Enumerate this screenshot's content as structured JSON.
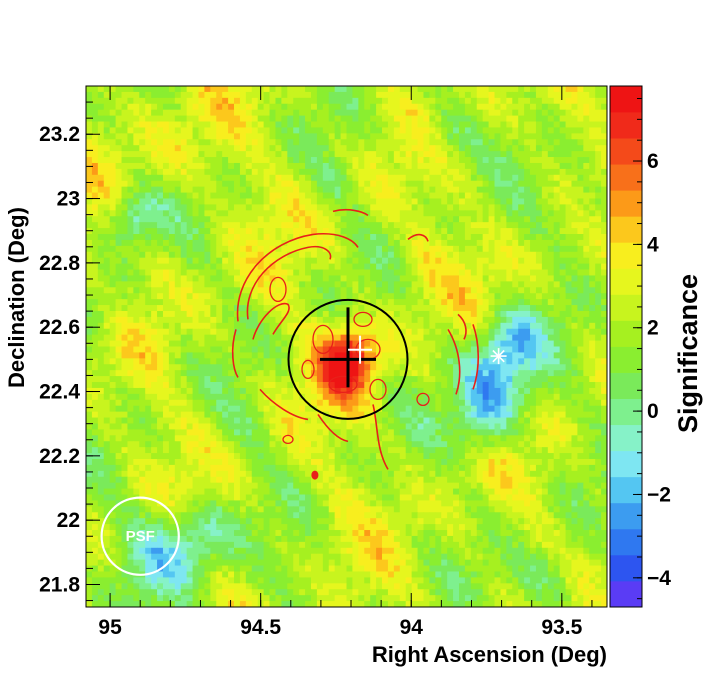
{
  "chart_data": {
    "type": "heatmap",
    "title": "",
    "xlabel": "Right Ascension (Deg)",
    "ylabel": "Declination (Deg)",
    "zlabel": "Significance",
    "xlim": [
      95.08,
      93.35
    ],
    "ylim": [
      21.73,
      23.35
    ],
    "x_reversed": true,
    "zlim": [
      -4.7,
      7.8
    ],
    "x_ticks": [
      95,
      94.5,
      94,
      93.5
    ],
    "x_tick_labels": [
      "95",
      "94.5",
      "94",
      "93.5"
    ],
    "y_ticks": [
      21.8,
      22,
      22.2,
      22.4,
      22.6,
      22.8,
      23,
      23.2
    ],
    "y_tick_labels": [
      "21.8",
      "22",
      "22.2",
      "22.4",
      "22.6",
      "22.8",
      "23",
      "23.2"
    ],
    "z_ticks": [
      -4,
      -2,
      0,
      2,
      4,
      6
    ],
    "z_tick_labels": [
      "−4",
      "−2",
      "0",
      "2",
      "4",
      "6"
    ],
    "colorbar_colors": [
      "#5a3cf5",
      "#2d55f0",
      "#2f78f0",
      "#3c9cf0",
      "#54c6f2",
      "#7ee6f2",
      "#86f2c8",
      "#7ef08e",
      "#7aea5a",
      "#8aee30",
      "#a6f020",
      "#c8f41e",
      "#e6f61e",
      "#f8ee1e",
      "#fcc81c",
      "#fc9a18",
      "#f8701a",
      "#f44a1a",
      "#f02a1a",
      "#ee1414"
    ],
    "hotspot_center": [
      94.21,
      22.5
    ],
    "hotspot_peak": 6.5,
    "circle_center": [
      94.21,
      22.5
    ],
    "circle_radius_deg": 0.185,
    "black_cross_center": [
      94.21,
      22.5
    ],
    "white_cross_center": [
      94.17,
      22.53
    ],
    "white_star": [
      93.71,
      22.51
    ],
    "red_dot": [
      94.32,
      22.14
    ],
    "psf_label": "PSF",
    "psf_center": [
      94.9,
      21.95
    ],
    "psf_radius_deg": 0.12,
    "grid": false,
    "legend": "none",
    "colors": {
      "contours": "#e8201a",
      "circle": "#000000",
      "marker_white": "#ffffff"
    }
  }
}
